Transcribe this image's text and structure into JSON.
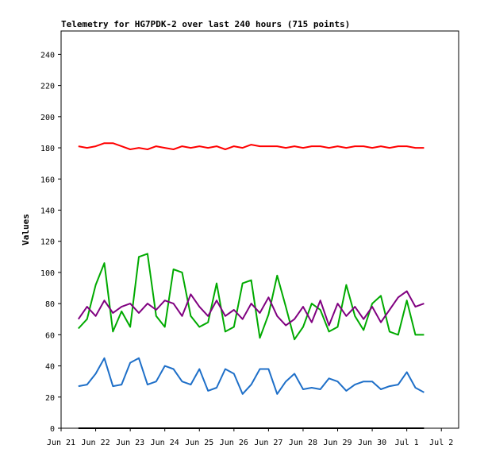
{
  "chart_data": {
    "type": "line",
    "title": "Telemetry for HG7PDK-2 over last 240 hours (715 points)",
    "xlabel": "",
    "ylabel": "Values",
    "ylim": [
      0,
      255
    ],
    "yticks": [
      0,
      20,
      40,
      60,
      80,
      100,
      120,
      140,
      160,
      180,
      200,
      220,
      240
    ],
    "xlim": [
      "2024-06-21",
      "2024-07-02T12:00"
    ],
    "x_tick_labels": [
      "Jun 21",
      "Jun 22",
      "Jun 23",
      "Jun 24",
      "Jun 25",
      "Jun 26",
      "Jun 27",
      "Jun 28",
      "Jun 29",
      "Jun 30",
      "Jul 1",
      "Jul 2"
    ],
    "grid": false,
    "legend": "none",
    "series": [
      {
        "color": "#ff0000",
        "x": [
          "2024-06-21T12:00",
          "2024-06-21T18:00",
          "2024-06-22T00:00",
          "2024-06-22T06:00",
          "2024-06-22T12:00",
          "2024-06-22T18:00",
          "2024-06-23T00:00",
          "2024-06-23T06:00",
          "2024-06-23T12:00",
          "2024-06-23T18:00",
          "2024-06-24T00:00",
          "2024-06-24T06:00",
          "2024-06-24T12:00",
          "2024-06-24T18:00",
          "2024-06-25T00:00",
          "2024-06-25T06:00",
          "2024-06-25T12:00",
          "2024-06-25T18:00",
          "2024-06-26T00:00",
          "2024-06-26T06:00",
          "2024-06-26T12:00",
          "2024-06-26T18:00",
          "2024-06-27T00:00",
          "2024-06-27T06:00",
          "2024-06-27T12:00",
          "2024-06-27T18:00",
          "2024-06-28T00:00",
          "2024-06-28T06:00",
          "2024-06-28T12:00",
          "2024-06-28T18:00",
          "2024-06-29T00:00",
          "2024-06-29T06:00",
          "2024-06-29T12:00",
          "2024-06-29T18:00",
          "2024-06-30T00:00",
          "2024-06-30T06:00",
          "2024-06-30T12:00",
          "2024-06-30T18:00",
          "2024-07-01T00:00",
          "2024-07-01T06:00",
          "2024-07-01T12:00"
        ],
        "values": [
          181,
          180,
          181,
          183,
          183,
          181,
          179,
          180,
          179,
          181,
          180,
          179,
          181,
          180,
          181,
          180,
          181,
          179,
          181,
          180,
          182,
          181,
          181,
          181,
          180,
          181,
          180,
          181,
          181,
          180,
          181,
          180,
          181,
          181,
          180,
          181,
          180,
          181,
          181,
          180,
          180
        ]
      },
      {
        "color": "#00aa00",
        "x": [
          "2024-06-21T12:00",
          "2024-06-21T18:00",
          "2024-06-22T00:00",
          "2024-06-22T06:00",
          "2024-06-22T12:00",
          "2024-06-22T18:00",
          "2024-06-23T00:00",
          "2024-06-23T06:00",
          "2024-06-23T12:00",
          "2024-06-23T18:00",
          "2024-06-24T00:00",
          "2024-06-24T06:00",
          "2024-06-24T12:00",
          "2024-06-24T18:00",
          "2024-06-25T00:00",
          "2024-06-25T06:00",
          "2024-06-25T12:00",
          "2024-06-25T18:00",
          "2024-06-26T00:00",
          "2024-06-26T06:00",
          "2024-06-26T12:00",
          "2024-06-26T18:00",
          "2024-06-27T00:00",
          "2024-06-27T06:00",
          "2024-06-27T12:00",
          "2024-06-27T18:00",
          "2024-06-28T00:00",
          "2024-06-28T06:00",
          "2024-06-28T12:00",
          "2024-06-28T18:00",
          "2024-06-29T00:00",
          "2024-06-29T06:00",
          "2024-06-29T12:00",
          "2024-06-29T18:00",
          "2024-06-30T00:00",
          "2024-06-30T06:00",
          "2024-06-30T12:00",
          "2024-06-30T18:00",
          "2024-07-01T00:00",
          "2024-07-01T06:00",
          "2024-07-01T12:00"
        ],
        "values": [
          64,
          70,
          92,
          106,
          62,
          75,
          65,
          110,
          112,
          72,
          65,
          102,
          100,
          72,
          65,
          68,
          93,
          62,
          65,
          93,
          95,
          58,
          73,
          98,
          78,
          57,
          65,
          80,
          76,
          62,
          65,
          92,
          72,
          63,
          80,
          85,
          62,
          60,
          82,
          60,
          60
        ]
      },
      {
        "color": "#800080",
        "x": [
          "2024-06-21T12:00",
          "2024-06-21T18:00",
          "2024-06-22T00:00",
          "2024-06-22T06:00",
          "2024-06-22T12:00",
          "2024-06-22T18:00",
          "2024-06-23T00:00",
          "2024-06-23T06:00",
          "2024-06-23T12:00",
          "2024-06-23T18:00",
          "2024-06-24T00:00",
          "2024-06-24T06:00",
          "2024-06-24T12:00",
          "2024-06-24T18:00",
          "2024-06-25T00:00",
          "2024-06-25T06:00",
          "2024-06-25T12:00",
          "2024-06-25T18:00",
          "2024-06-26T00:00",
          "2024-06-26T06:00",
          "2024-06-26T12:00",
          "2024-06-26T18:00",
          "2024-06-27T00:00",
          "2024-06-27T06:00",
          "2024-06-27T12:00",
          "2024-06-27T18:00",
          "2024-06-28T00:00",
          "2024-06-28T06:00",
          "2024-06-28T12:00",
          "2024-06-28T18:00",
          "2024-06-29T00:00",
          "2024-06-29T06:00",
          "2024-06-29T12:00",
          "2024-06-29T18:00",
          "2024-06-30T00:00",
          "2024-06-30T06:00",
          "2024-06-30T12:00",
          "2024-06-30T18:00",
          "2024-07-01T00:00",
          "2024-07-01T06:00",
          "2024-07-01T12:00"
        ],
        "values": [
          70,
          78,
          72,
          82,
          74,
          78,
          80,
          74,
          80,
          76,
          82,
          80,
          72,
          86,
          78,
          72,
          82,
          72,
          76,
          70,
          80,
          74,
          84,
          72,
          66,
          70,
          78,
          68,
          82,
          66,
          80,
          72,
          78,
          70,
          78,
          68,
          76,
          84,
          88,
          78,
          80
        ]
      },
      {
        "color": "#1e6fc8",
        "x": [
          "2024-06-21T12:00",
          "2024-06-21T18:00",
          "2024-06-22T00:00",
          "2024-06-22T06:00",
          "2024-06-22T12:00",
          "2024-06-22T18:00",
          "2024-06-23T00:00",
          "2024-06-23T06:00",
          "2024-06-23T12:00",
          "2024-06-23T18:00",
          "2024-06-24T00:00",
          "2024-06-24T06:00",
          "2024-06-24T12:00",
          "2024-06-24T18:00",
          "2024-06-25T00:00",
          "2024-06-25T06:00",
          "2024-06-25T12:00",
          "2024-06-25T18:00",
          "2024-06-26T00:00",
          "2024-06-26T06:00",
          "2024-06-26T12:00",
          "2024-06-26T18:00",
          "2024-06-27T00:00",
          "2024-06-27T06:00",
          "2024-06-27T12:00",
          "2024-06-27T18:00",
          "2024-06-28T00:00",
          "2024-06-28T06:00",
          "2024-06-28T12:00",
          "2024-06-28T18:00",
          "2024-06-29T00:00",
          "2024-06-29T06:00",
          "2024-06-29T12:00",
          "2024-06-29T18:00",
          "2024-06-30T00:00",
          "2024-06-30T06:00",
          "2024-06-30T12:00",
          "2024-06-30T18:00",
          "2024-07-01T00:00",
          "2024-07-01T06:00",
          "2024-07-01T12:00"
        ],
        "values": [
          27,
          28,
          35,
          45,
          27,
          28,
          42,
          45,
          28,
          30,
          40,
          38,
          30,
          28,
          38,
          24,
          26,
          38,
          35,
          22,
          28,
          38,
          38,
          22,
          30,
          35,
          25,
          26,
          25,
          32,
          30,
          24,
          28,
          30,
          30,
          25,
          27,
          28,
          36,
          26,
          23
        ]
      },
      {
        "color": "#000000",
        "x": [
          "2024-06-21T12:00",
          "2024-07-01T12:00"
        ],
        "values": [
          0,
          0
        ]
      }
    ]
  }
}
